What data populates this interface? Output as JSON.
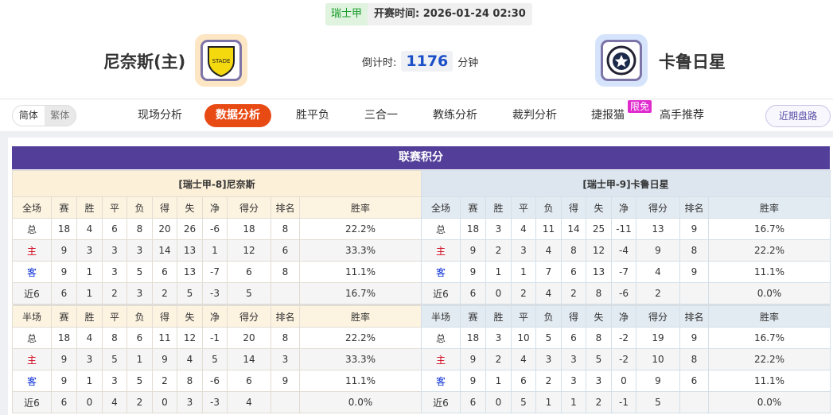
{
  "header": {
    "league": "瑞士甲",
    "kickoff_label": "开赛时间:",
    "kickoff": "2026-01-24 02:30",
    "home_team": "尼奈斯(主)",
    "away_team": "卡鲁日星",
    "countdown_label": "倒计时:",
    "countdown_value": "1176",
    "countdown_unit": "分钟"
  },
  "nav": {
    "lang": [
      "简体",
      "繁体"
    ],
    "tabs": [
      "现场分析",
      "数据分析",
      "胜平负",
      "三合一",
      "教练分析",
      "裁判分析",
      "捷报猫",
      "高手推荐"
    ],
    "active_tab": "数据分析",
    "badge": "限免",
    "recent_button": "近期盘路"
  },
  "colors": {
    "accent": "#e84a14",
    "title_bar": "#533f99",
    "home_label": "#d0021b",
    "away_label": "#0b2fd6"
  },
  "standings": {
    "title": "联赛积分",
    "home": {
      "team_label": "[瑞士甲-8]尼奈斯",
      "full": {
        "headers": [
          "全场",
          "赛",
          "胜",
          "平",
          "负",
          "得",
          "失",
          "净",
          "得分",
          "排名",
          "胜率"
        ],
        "rows": [
          [
            "总",
            "18",
            "4",
            "6",
            "8",
            "20",
            "26",
            "-6",
            "18",
            "8",
            "22.2%"
          ],
          [
            "主",
            "9",
            "3",
            "3",
            "3",
            "14",
            "13",
            "1",
            "12",
            "6",
            "33.3%"
          ],
          [
            "客",
            "9",
            "1",
            "3",
            "5",
            "6",
            "13",
            "-7",
            "6",
            "8",
            "11.1%"
          ],
          [
            "近6",
            "6",
            "1",
            "2",
            "3",
            "2",
            "5",
            "-3",
            "5",
            "",
            "16.7%"
          ]
        ]
      },
      "half": {
        "headers": [
          "半场",
          "赛",
          "胜",
          "平",
          "负",
          "得",
          "失",
          "净",
          "得分",
          "排名",
          "胜率"
        ],
        "rows": [
          [
            "总",
            "18",
            "4",
            "8",
            "6",
            "11",
            "12",
            "-1",
            "20",
            "8",
            "22.2%"
          ],
          [
            "主",
            "9",
            "3",
            "5",
            "1",
            "9",
            "4",
            "5",
            "14",
            "3",
            "33.3%"
          ],
          [
            "客",
            "9",
            "1",
            "3",
            "5",
            "2",
            "8",
            "-6",
            "6",
            "9",
            "11.1%"
          ],
          [
            "近6",
            "6",
            "0",
            "4",
            "2",
            "0",
            "3",
            "-3",
            "4",
            "",
            "0.0%"
          ]
        ]
      }
    },
    "away": {
      "team_label": "[瑞士甲-9]卡鲁日星",
      "full": {
        "headers": [
          "全场",
          "赛",
          "胜",
          "平",
          "负",
          "得",
          "失",
          "净",
          "得分",
          "排名",
          "胜率"
        ],
        "rows": [
          [
            "总",
            "18",
            "3",
            "4",
            "11",
            "14",
            "25",
            "-11",
            "13",
            "9",
            "16.7%"
          ],
          [
            "主",
            "9",
            "2",
            "3",
            "4",
            "8",
            "12",
            "-4",
            "9",
            "8",
            "22.2%"
          ],
          [
            "客",
            "9",
            "1",
            "1",
            "7",
            "6",
            "13",
            "-7",
            "4",
            "9",
            "11.1%"
          ],
          [
            "近6",
            "6",
            "0",
            "2",
            "4",
            "2",
            "8",
            "-6",
            "2",
            "",
            "0.0%"
          ]
        ]
      },
      "half": {
        "headers": [
          "半场",
          "赛",
          "胜",
          "平",
          "负",
          "得",
          "失",
          "净",
          "得分",
          "排名",
          "胜率"
        ],
        "rows": [
          [
            "总",
            "18",
            "3",
            "10",
            "5",
            "6",
            "8",
            "-2",
            "19",
            "9",
            "16.7%"
          ],
          [
            "主",
            "9",
            "2",
            "4",
            "3",
            "3",
            "5",
            "-2",
            "10",
            "8",
            "22.2%"
          ],
          [
            "客",
            "9",
            "1",
            "6",
            "2",
            "3",
            "3",
            "0",
            "9",
            "6",
            "11.1%"
          ],
          [
            "近6",
            "6",
            "0",
            "5",
            "1",
            "1",
            "2",
            "-1",
            "5",
            "",
            "0.0%"
          ]
        ]
      }
    }
  }
}
